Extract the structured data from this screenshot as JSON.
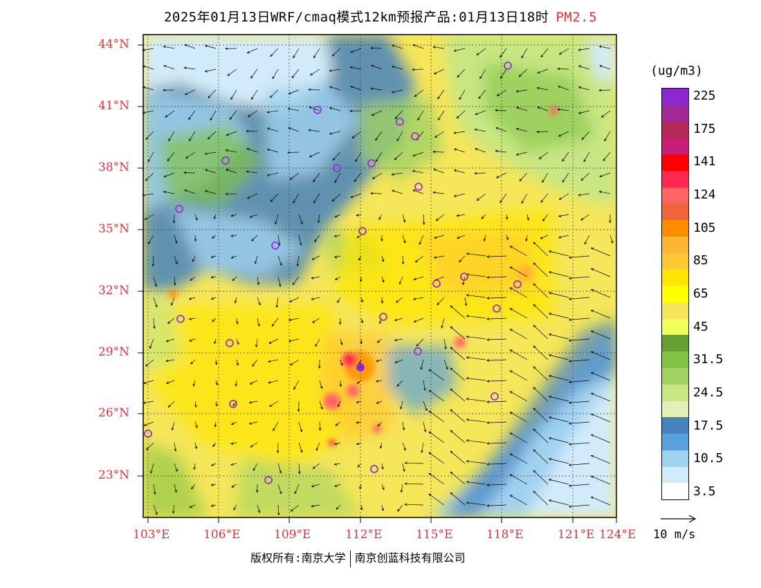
{
  "title": {
    "main": "2025年01月13日WRF/cmaq模式12km预报产品:01月13日18时",
    "variable": "PM2.5"
  },
  "axes": {
    "lat_labels": [
      "44°N",
      "41°N",
      "38°N",
      "35°N",
      "32°N",
      "29°N",
      "26°N",
      "23°N"
    ],
    "lon_labels": [
      "103°E",
      "106°E",
      "109°E",
      "112°E",
      "115°E",
      "118°E",
      "121°E",
      "124°E"
    ]
  },
  "legend": {
    "unit": "(ug/m3)",
    "levels": [
      {
        "label": "225",
        "color": "#8c28d2"
      },
      {
        "label": "",
        "color": "#a0289b"
      },
      {
        "label": "175",
        "color": "#b4285a"
      },
      {
        "label": "",
        "color": "#c81e78"
      },
      {
        "label": "141",
        "color": "#ff0000"
      },
      {
        "label": "",
        "color": "#ff2850"
      },
      {
        "label": "124",
        "color": "#ff6464"
      },
      {
        "label": "",
        "color": "#f0643c"
      },
      {
        "label": "105",
        "color": "#ff8c00"
      },
      {
        "label": "",
        "color": "#ffb432"
      },
      {
        "label": "85",
        "color": "#ffc832"
      },
      {
        "label": "",
        "color": "#ffe600"
      },
      {
        "label": "65",
        "color": "#ffff00"
      },
      {
        "label": "",
        "color": "#f5e65a"
      },
      {
        "label": "45",
        "color": "#f0ff5a"
      },
      {
        "label": "",
        "color": "#64a032"
      },
      {
        "label": "31.5",
        "color": "#82c346"
      },
      {
        "label": "",
        "color": "#a0d264"
      },
      {
        "label": "24.5",
        "color": "#c8e682"
      },
      {
        "label": "",
        "color": "#e1f0b4"
      },
      {
        "label": "17.5",
        "color": "#4682be"
      },
      {
        "label": "",
        "color": "#5aa0dc"
      },
      {
        "label": "10.5",
        "color": "#a0d2f0"
      },
      {
        "label": "",
        "color": "#d2ebfa"
      },
      {
        "label": "3.5",
        "color": "#ffffff"
      }
    ]
  },
  "wind_key": "10 m/s",
  "footer": {
    "left": "版权所有:南京大学",
    "right": "南京创蓝科技有限公司"
  },
  "colors": {
    "accent_red": "#e0323c",
    "city_marker": "#9b2fd6"
  },
  "icons": {
    "city_marker": "circle-marker-icon",
    "wind_arrow": "wind-arrow-icon"
  }
}
